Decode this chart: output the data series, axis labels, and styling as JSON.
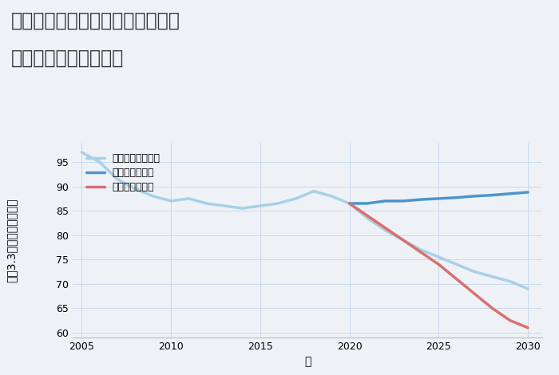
{
  "title_line1": "神奈川県中郡二宮町富士見が丘の",
  "title_line2": "中古戸建ての価格推移",
  "xlabel": "年",
  "ylabel": "坪（3.3㎡）単価（万円）",
  "background_color": "#eef2f7",
  "plot_bg_color": "#eef2f7",
  "ylim": [
    59,
    99
  ],
  "xlim": [
    2004.5,
    2030.8
  ],
  "yticks": [
    60,
    65,
    70,
    75,
    80,
    85,
    90,
    95
  ],
  "xticks": [
    2005,
    2010,
    2015,
    2020,
    2025,
    2030
  ],
  "good_scenario": {
    "x": [
      2020,
      2021,
      2022,
      2023,
      2024,
      2025,
      2026,
      2027,
      2028,
      2029,
      2030
    ],
    "y": [
      86.5,
      86.5,
      87.0,
      87.0,
      87.3,
      87.5,
      87.7,
      88.0,
      88.2,
      88.5,
      88.8
    ],
    "color": "#4d94cc",
    "linewidth": 2.5,
    "label": "グッドシナリオ"
  },
  "bad_scenario": {
    "x": [
      2020,
      2021,
      2022,
      2023,
      2024,
      2025,
      2026,
      2027,
      2028,
      2029,
      2030
    ],
    "y": [
      86.5,
      84.0,
      81.5,
      79.0,
      76.5,
      74.0,
      71.0,
      68.0,
      65.0,
      62.5,
      61.0
    ],
    "color": "#d97070",
    "linewidth": 2.5,
    "label": "バッドシナリオ"
  },
  "normal_scenario": {
    "x": [
      2005,
      2006,
      2007,
      2008,
      2009,
      2010,
      2011,
      2012,
      2013,
      2014,
      2015,
      2016,
      2017,
      2018,
      2019,
      2020,
      2021,
      2022,
      2023,
      2024,
      2025,
      2026,
      2027,
      2028,
      2029,
      2030
    ],
    "y": [
      97.0,
      95.0,
      91.5,
      89.5,
      88.0,
      87.0,
      87.5,
      86.5,
      86.0,
      85.5,
      86.0,
      86.5,
      87.5,
      89.0,
      88.0,
      86.5,
      83.5,
      81.0,
      79.0,
      77.0,
      75.5,
      74.0,
      72.5,
      71.5,
      70.5,
      69.0
    ],
    "color": "#a8d0e6",
    "linewidth": 2.5,
    "label": "ノーマルシナリオ"
  },
  "title_fontsize": 17,
  "axis_label_fontsize": 10,
  "tick_fontsize": 9,
  "legend_fontsize": 9
}
